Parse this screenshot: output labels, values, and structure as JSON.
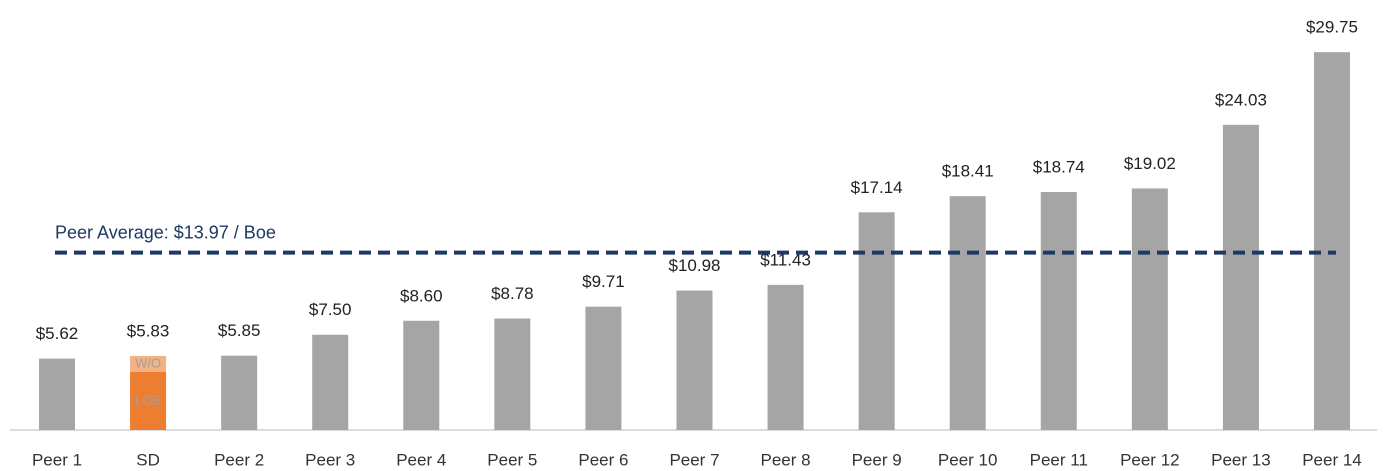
{
  "chart_data": {
    "type": "bar",
    "categories": [
      "Peer 1",
      "SD",
      "Peer 2",
      "Peer 3",
      "Peer 4",
      "Peer 5",
      "Peer 6",
      "Peer 7",
      "Peer 8",
      "Peer 9",
      "Peer 10",
      "Peer 11",
      "Peer 12",
      "Peer 13",
      "Peer 14"
    ],
    "series": [
      {
        "color": "#a5a5a5",
        "values": [
          5.62,
          null,
          5.85,
          7.5,
          8.6,
          8.78,
          9.71,
          10.98,
          11.43,
          17.14,
          18.41,
          18.74,
          19.02,
          24.03,
          29.75
        ]
      },
      {
        "name": "LOE",
        "color": "#ed7d31",
        "values": [
          null,
          4.57,
          null,
          null,
          null,
          null,
          null,
          null,
          null,
          null,
          null,
          null,
          null,
          null,
          null
        ]
      },
      {
        "name": "W/O",
        "color": "#f4b183",
        "values": [
          null,
          1.26,
          null,
          null,
          null,
          null,
          null,
          null,
          null,
          null,
          null,
          null,
          null,
          null,
          null
        ]
      }
    ],
    "value_labels": [
      "$5.62",
      "$5.83",
      "$5.85",
      "$7.50",
      "$8.60",
      "$8.78",
      "$9.71",
      "$10.98",
      "$11.43",
      "$17.14",
      "$18.41",
      "$18.74",
      "$19.02",
      "$24.03",
      "$29.75"
    ],
    "reference_line": {
      "value": 13.97,
      "label": "Peer Average: $13.97 / Boe",
      "color": "#1f3864"
    },
    "ylim": [
      0,
      30
    ]
  }
}
